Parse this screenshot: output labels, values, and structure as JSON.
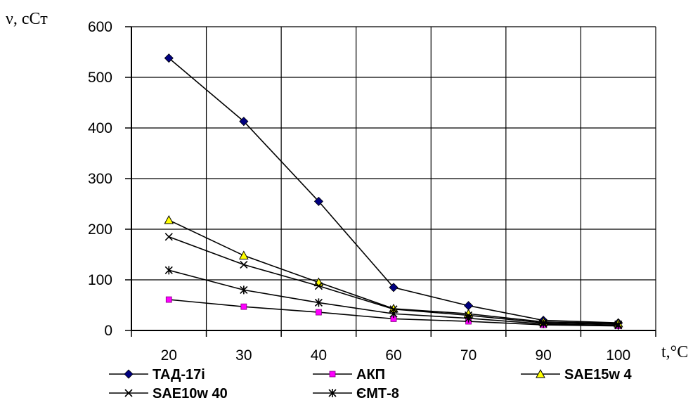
{
  "chart_data": {
    "type": "line",
    "ylabel": "ν, сСт",
    "xlabel": "t,°C",
    "categories": [
      "20",
      "30",
      "40",
      "60",
      "70",
      "90",
      "100"
    ],
    "ylim": [
      0,
      600
    ],
    "yticks": [
      "0",
      "100",
      "200",
      "300",
      "400",
      "500",
      "600"
    ],
    "grid": true,
    "legend_position": "bottom",
    "series": [
      {
        "name": "ТАД-17і",
        "marker": "diamond",
        "color": "#000080",
        "values": [
          538,
          413,
          255,
          85,
          49,
          20,
          15
        ]
      },
      {
        "name": "АКП",
        "marker": "square",
        "color": "#ff00ff",
        "values": [
          61,
          47,
          36,
          23,
          18,
          11,
          9
        ]
      },
      {
        "name": "SAE15w 4",
        "marker": "triangle",
        "color": "#ffff00",
        "values": [
          218,
          148,
          95,
          43,
          33,
          17,
          14
        ]
      },
      {
        "name": "SAE10w 40",
        "marker": "x",
        "color": "#000000",
        "values": [
          185,
          130,
          88,
          42,
          30,
          15,
          12
        ]
      },
      {
        "name": "ЄМТ-8",
        "marker": "star",
        "color": "#000000",
        "values": [
          119,
          80,
          55,
          33,
          24,
          13,
          10
        ]
      }
    ]
  }
}
